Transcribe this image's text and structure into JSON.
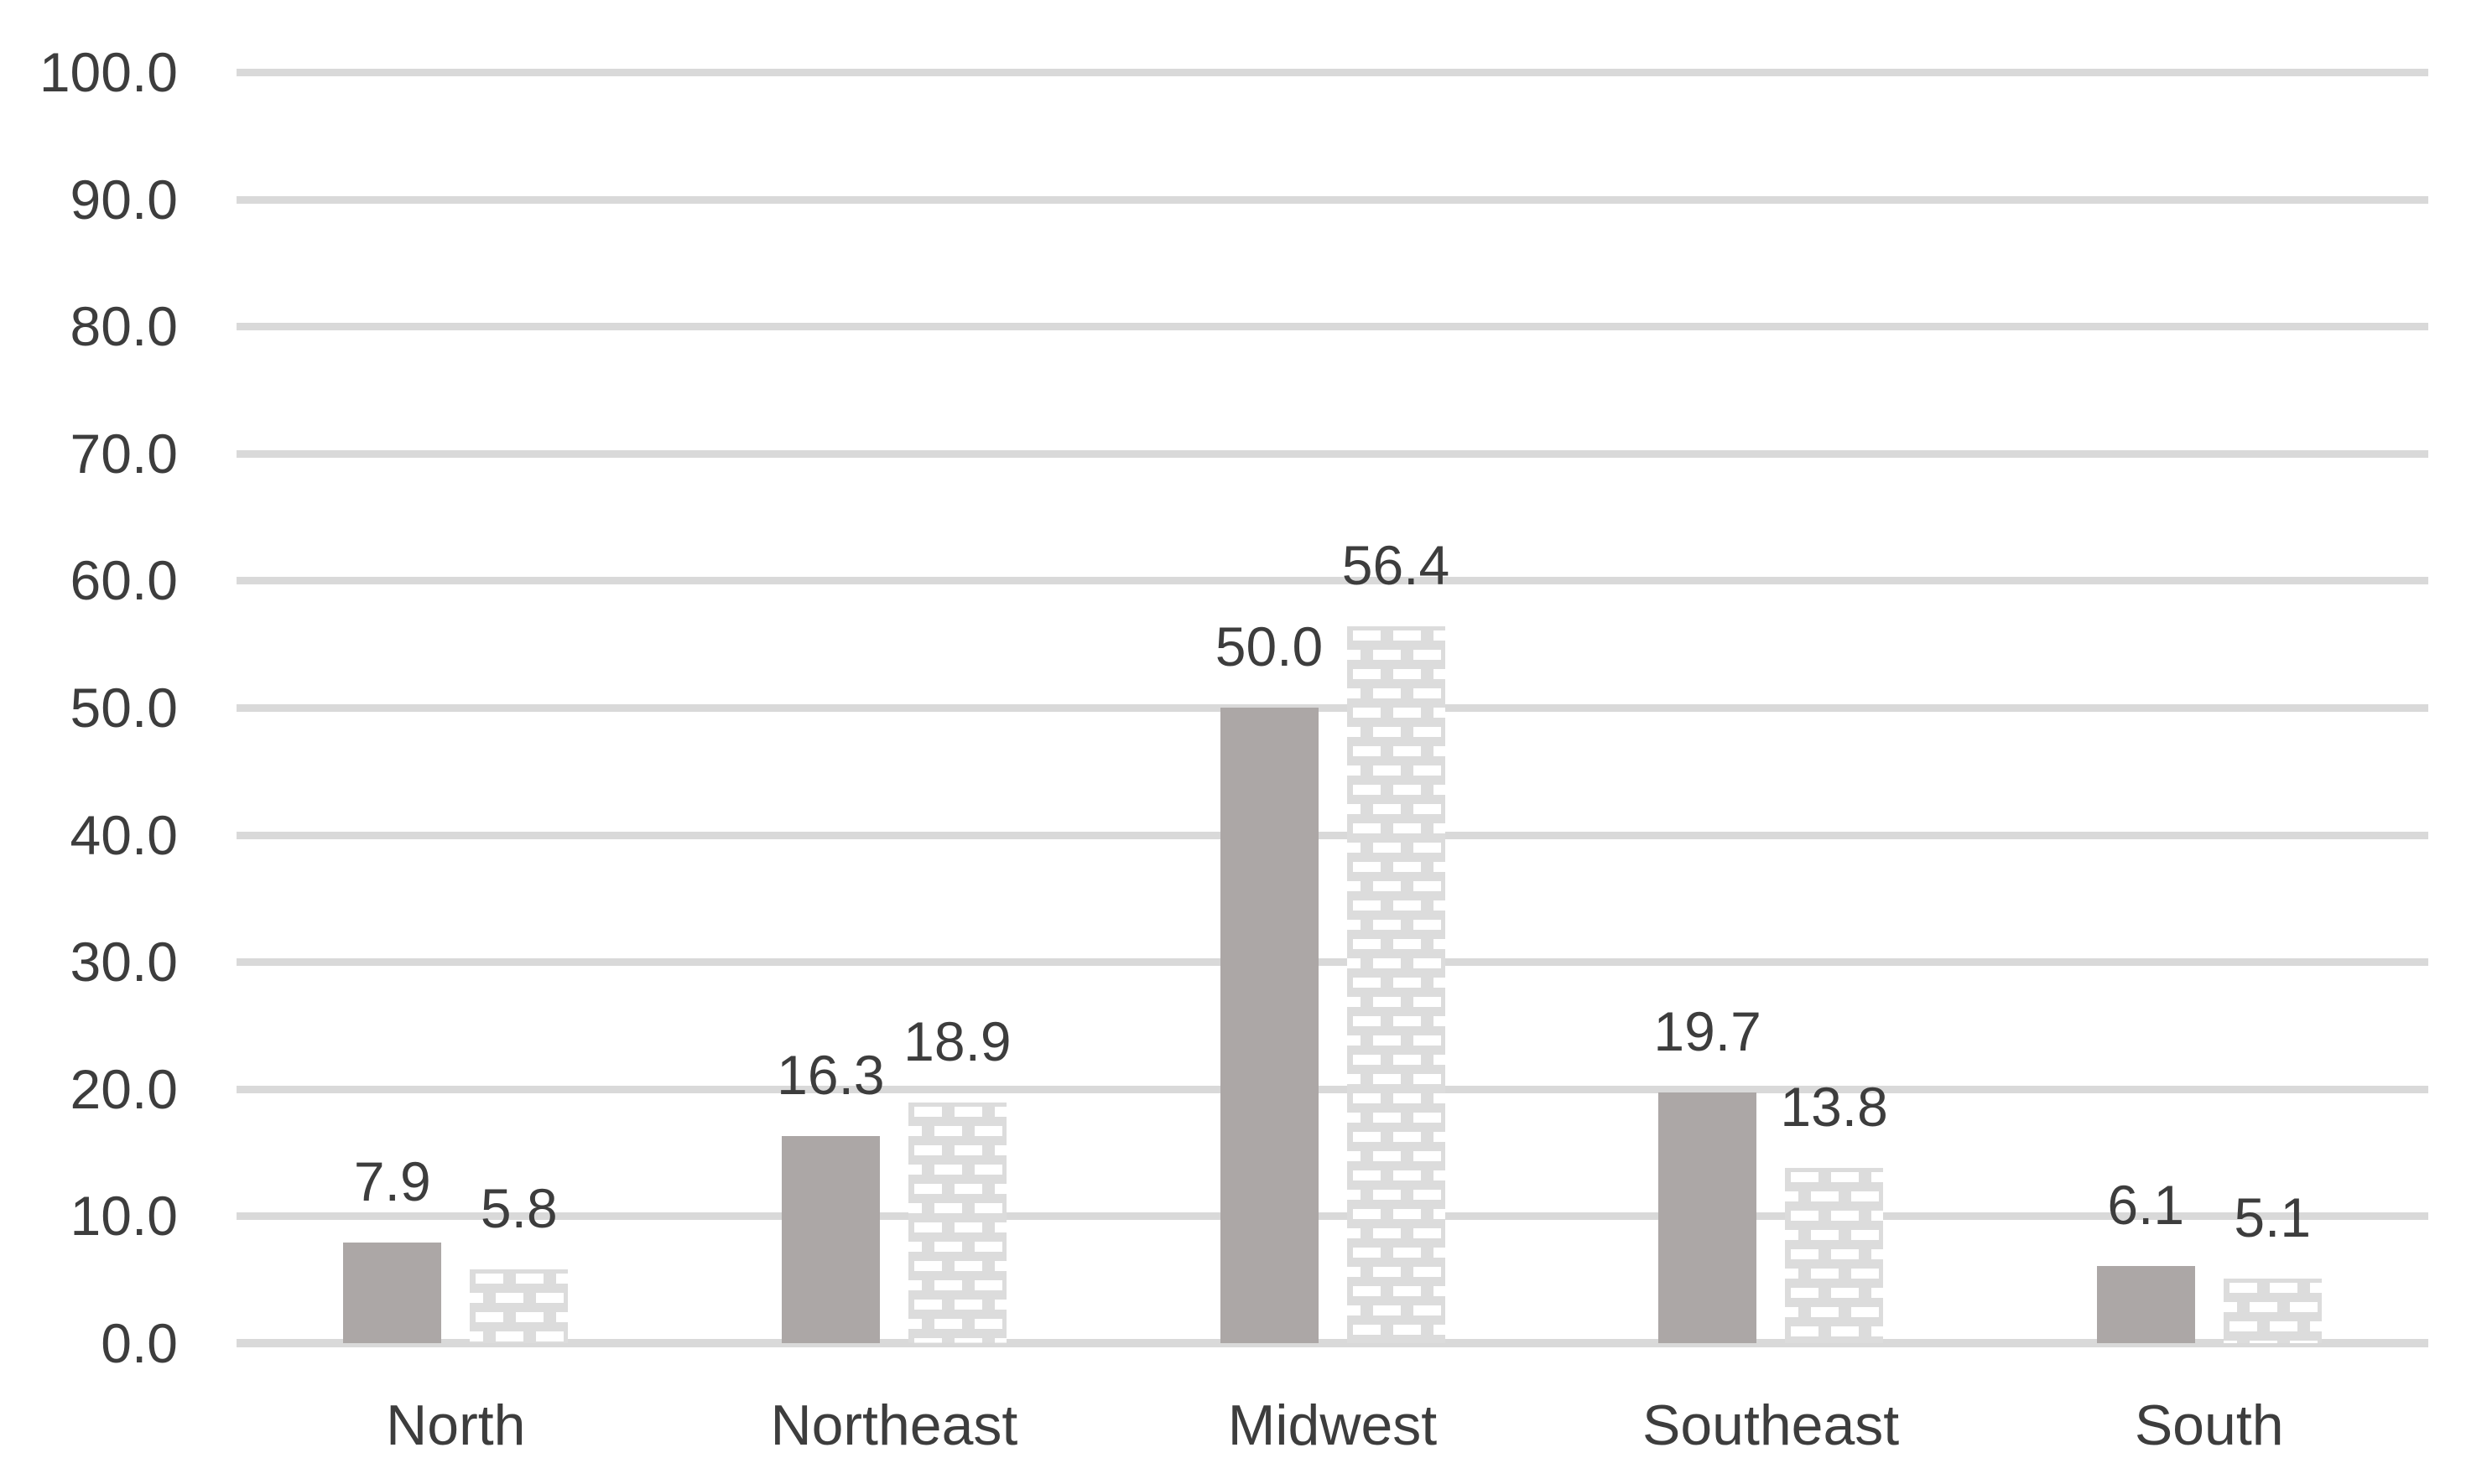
{
  "chart_data": {
    "type": "bar",
    "title": "",
    "xlabel": "",
    "ylabel": "",
    "categories": [
      "North",
      "Northeast",
      "Midwest",
      "Southeast",
      "South"
    ],
    "series": [
      {
        "name": "series-1-solid",
        "values": [
          7.9,
          16.3,
          50.0,
          19.7,
          6.1
        ]
      },
      {
        "name": "series-2-patterned",
        "values": [
          5.8,
          18.9,
          56.4,
          13.8,
          5.1
        ]
      }
    ],
    "data_labels": {
      "visible": true,
      "decimals": 1
    },
    "ylim": [
      0,
      100
    ],
    "ytick_step": 10,
    "ytick_decimals": 1,
    "ytick_labels": [
      "0.0",
      "10.0",
      "20.0",
      "30.0",
      "40.0",
      "50.0",
      "60.0",
      "70.0",
      "80.0",
      "90.0",
      "100.0"
    ],
    "grid": "horizontal",
    "legend": "none",
    "styles": {
      "background": "#ffffff",
      "gridline_color": "#d9d9d9",
      "axisline_color": "#d9d9d9",
      "text_color": "#3d3d3d",
      "series1_fill": "#aca7a6",
      "series2_fill": "#dcdcdc",
      "series2_pattern": "brick-dash",
      "series2_pattern_dash_color": "#ffffff"
    }
  }
}
